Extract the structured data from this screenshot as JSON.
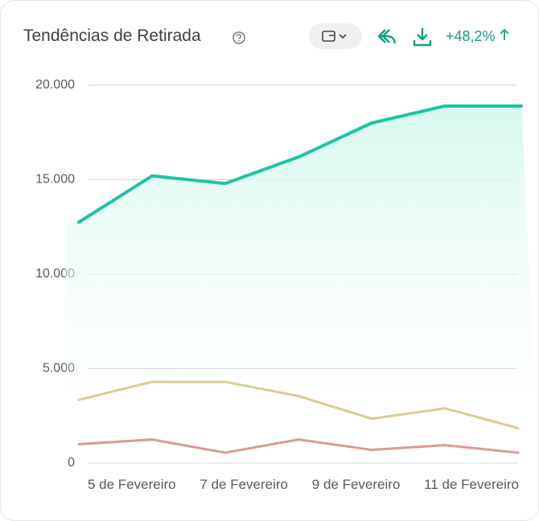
{
  "chart_data": {
    "type": "line",
    "title": "Tendências de Retirada",
    "change": "+48,2%",
    "categories": [
      "5 de Fevereiro",
      null,
      "7 de Fevereiro",
      null,
      "9 de Fevereiro",
      null,
      "11 de Fevereiro"
    ],
    "series": [
      {
        "color": "#1cc4a6",
        "values": [
          12750,
          15200,
          14800,
          16200,
          18000,
          18900,
          18900
        ],
        "area": true
      },
      {
        "color": "#dccb95",
        "values": [
          3350,
          4300,
          4300,
          3550,
          2350,
          2900,
          1850
        ]
      },
      {
        "color": "#d99a93",
        "values": [
          1000,
          1250,
          550,
          1250,
          700,
          950,
          550
        ]
      }
    ],
    "ylim": [
      0,
      20000
    ],
    "yticks": [
      0,
      {
        "value": 5000,
        "label": "5.000"
      },
      {
        "value": 10000,
        "label": "10.000"
      },
      {
        "value": 15000,
        "label": "15.000"
      },
      {
        "value": 20000,
        "label": "20.000"
      }
    ],
    "grid": true
  }
}
